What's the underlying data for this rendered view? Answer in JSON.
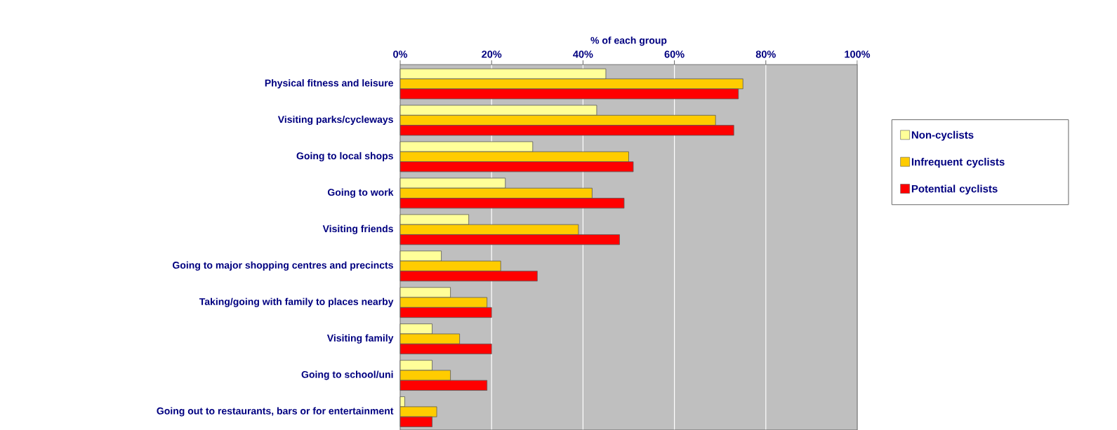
{
  "chart_data": {
    "type": "bar",
    "orientation": "horizontal",
    "xlabel": "% of each group",
    "categories": [
      "Physical fitness and leisure",
      "Visiting parks/cycleways",
      "Going to local shops",
      "Going to work",
      "Visiting friends",
      "Going to major shopping centres and precincts",
      "Taking/going with family to places nearby",
      "Visiting family",
      "Going to school/uni",
      "Going out to restaurants, bars or for entertainment"
    ],
    "series": [
      {
        "name": "Non-cyclists",
        "color": "#ffff99",
        "values": [
          45,
          43,
          29,
          23,
          15,
          9,
          11,
          7,
          7,
          1
        ]
      },
      {
        "name": "Infrequent cyclists",
        "color": "#ffcc00",
        "values": [
          75,
          69,
          50,
          42,
          39,
          22,
          19,
          13,
          11,
          8
        ]
      },
      {
        "name": "Potential cyclists",
        "color": "#ff0000",
        "values": [
          74,
          73,
          51,
          49,
          48,
          30,
          20,
          20,
          19,
          7
        ]
      }
    ],
    "xlim": [
      0,
      100
    ],
    "xticks": [
      {
        "value": 0,
        "label": "0%"
      },
      {
        "value": 20,
        "label": "20%"
      },
      {
        "value": 40,
        "label": "40%"
      },
      {
        "value": 60,
        "label": "60%"
      },
      {
        "value": 80,
        "label": "80%"
      },
      {
        "value": 100,
        "label": "100%"
      }
    ],
    "grid": "x",
    "legend": "right"
  }
}
